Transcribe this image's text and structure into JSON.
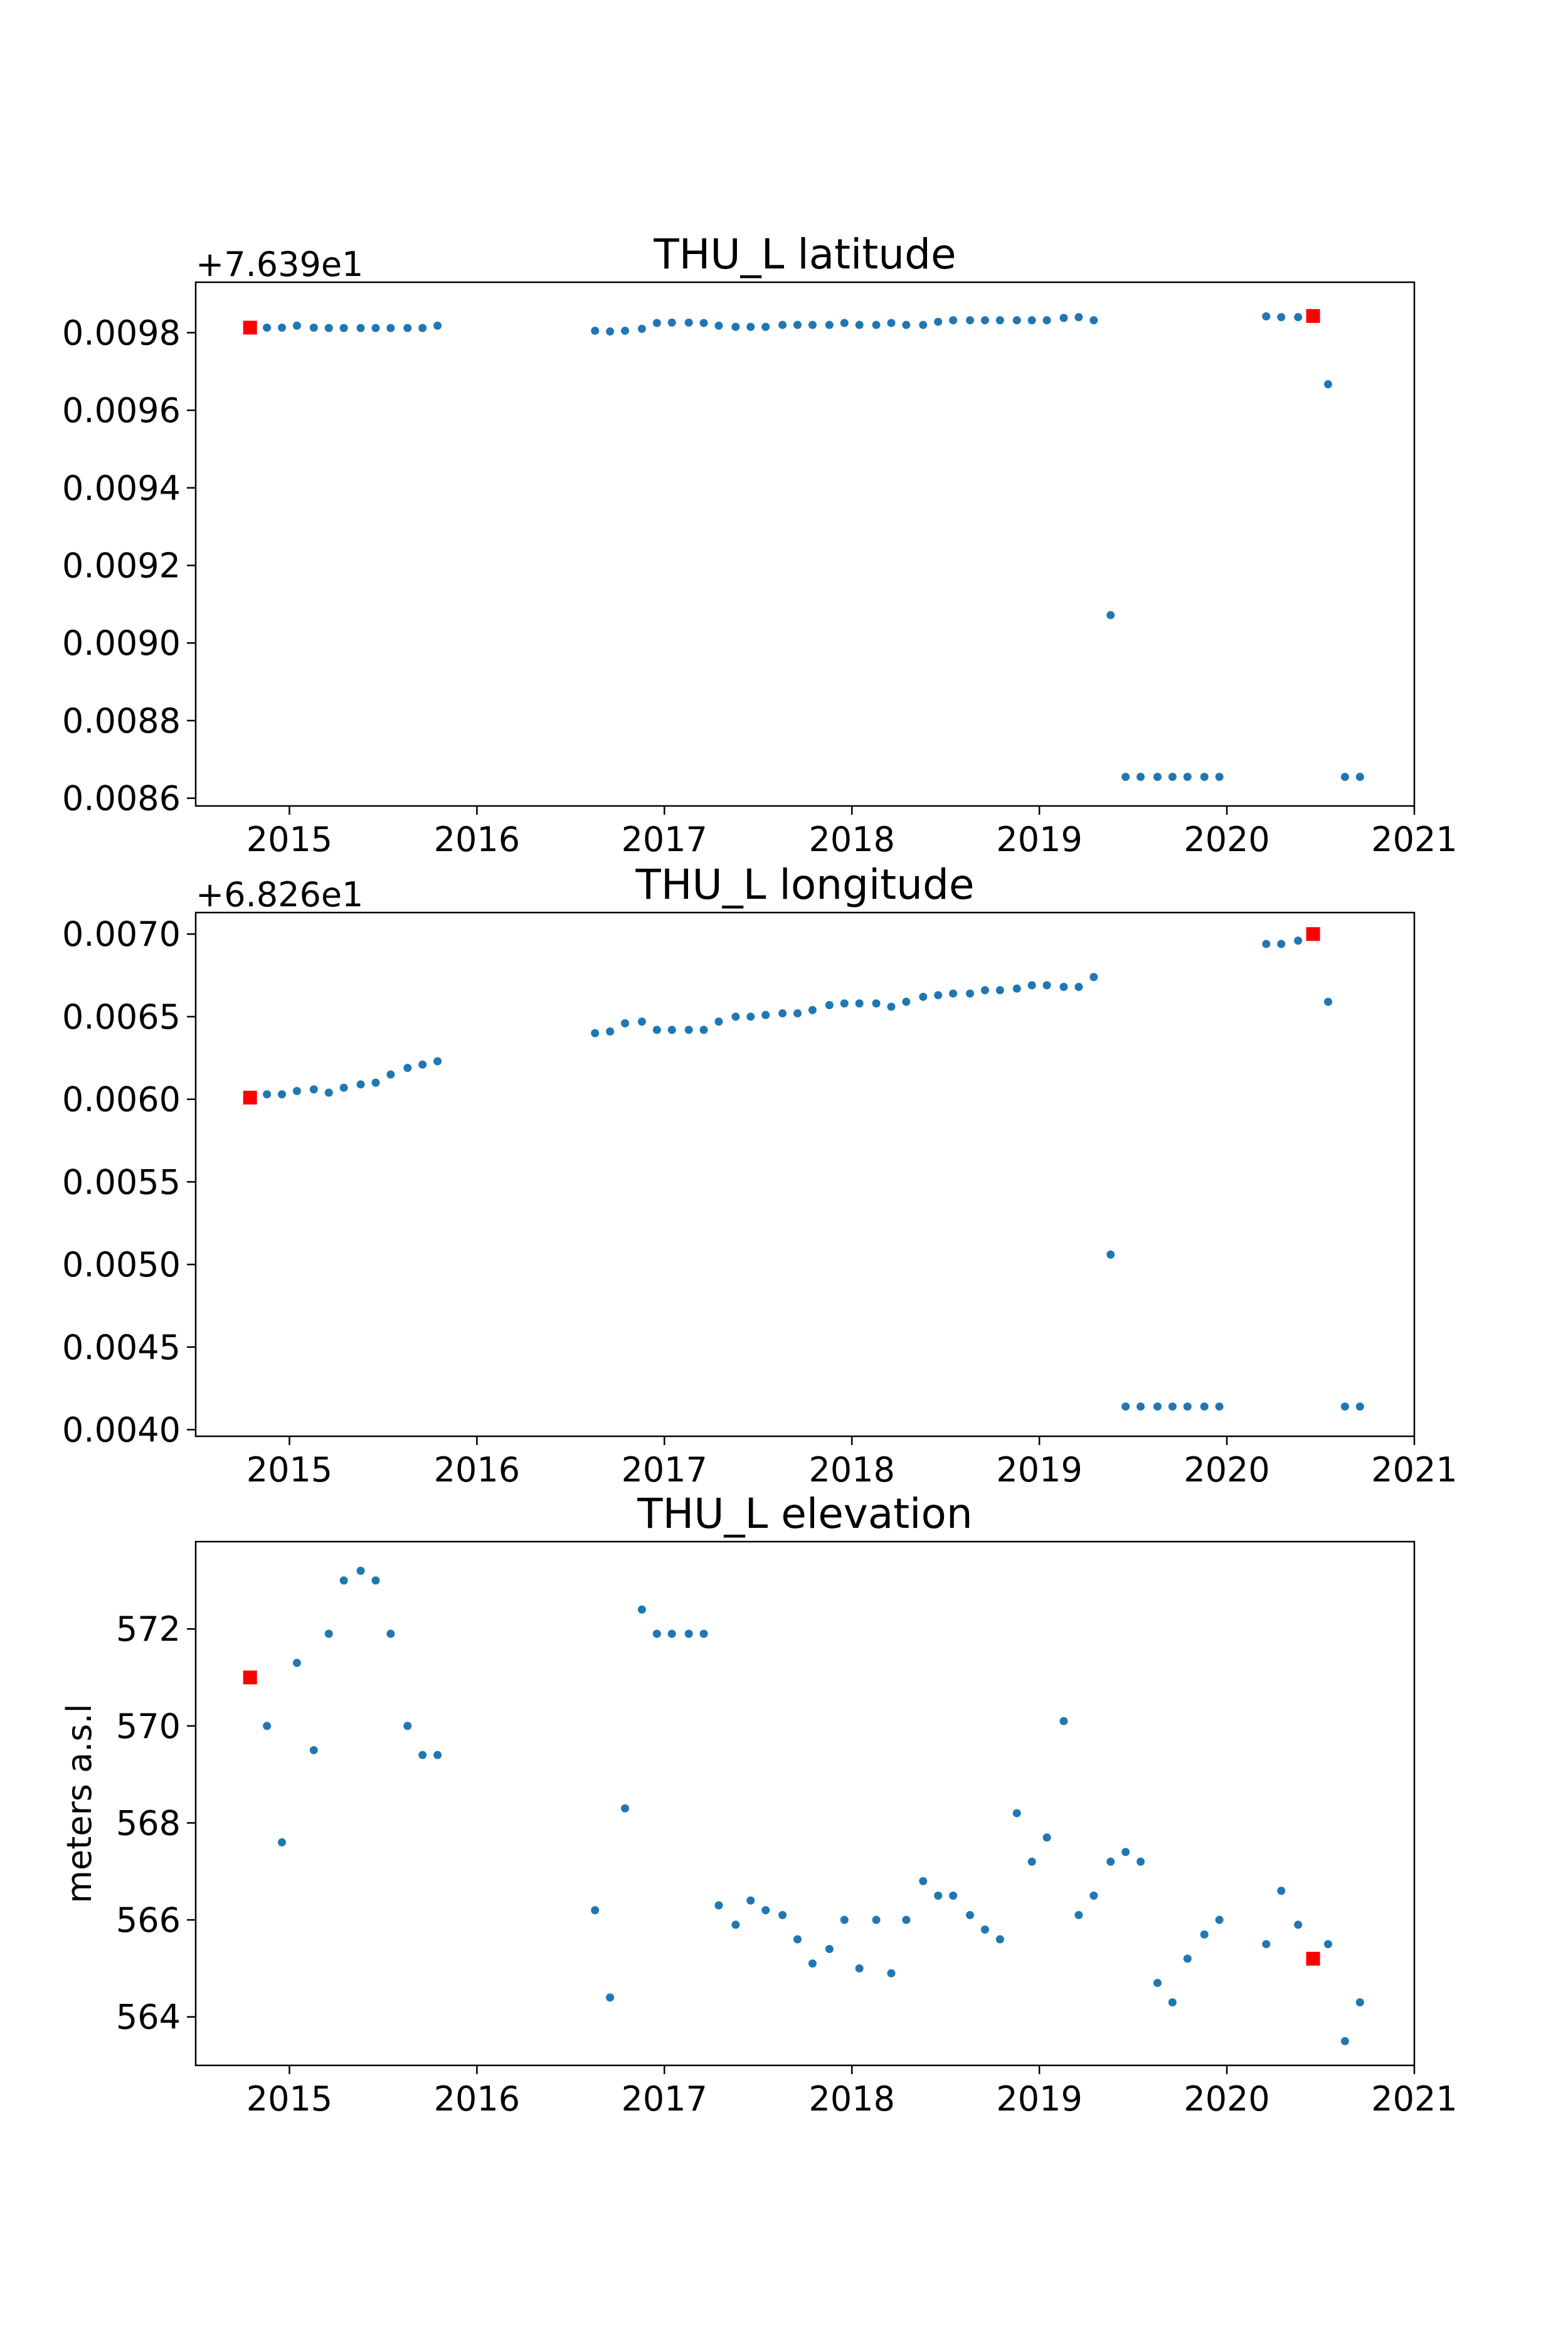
{
  "chart_data": [
    {
      "type": "scatter",
      "title": "THU_L latitude",
      "xlabel": "",
      "ylabel": "",
      "y_offset_text": "+7.639e1",
      "xlim": [
        2014.5,
        2021.0
      ],
      "ylim": [
        0.00858,
        0.00993
      ],
      "x_ticks": [
        2015,
        2016,
        2017,
        2018,
        2019,
        2020,
        2021
      ],
      "x_tick_labels": [
        "2015",
        "2016",
        "2017",
        "2018",
        "2019",
        "2020",
        "2021"
      ],
      "y_ticks": [
        0.0086,
        0.0088,
        0.009,
        0.0092,
        0.0094,
        0.0096,
        0.0098
      ],
      "y_tick_labels": [
        "0.0086",
        "0.0088",
        "0.0090",
        "0.0092",
        "0.0094",
        "0.0096",
        "0.0098"
      ],
      "series": [
        {
          "color": "#1f77b4",
          "marker": "dot",
          "points": [
            [
              2014.88,
              0.009813
            ],
            [
              2014.96,
              0.009813
            ],
            [
              2015.04,
              0.009818
            ],
            [
              2015.13,
              0.009813
            ],
            [
              2015.21,
              0.009812
            ],
            [
              2015.29,
              0.009812
            ],
            [
              2015.38,
              0.009812
            ],
            [
              2015.46,
              0.009812
            ],
            [
              2015.54,
              0.009812
            ],
            [
              2015.63,
              0.009812
            ],
            [
              2015.71,
              0.009812
            ],
            [
              2015.79,
              0.009818
            ],
            [
              2016.63,
              0.009805
            ],
            [
              2016.71,
              0.009803
            ],
            [
              2016.79,
              0.009805
            ],
            [
              2016.88,
              0.00981
            ],
            [
              2016.96,
              0.009825
            ],
            [
              2017.04,
              0.009826
            ],
            [
              2017.13,
              0.009826
            ],
            [
              2017.21,
              0.009825
            ],
            [
              2017.29,
              0.009818
            ],
            [
              2017.38,
              0.009815
            ],
            [
              2017.46,
              0.009815
            ],
            [
              2017.54,
              0.009815
            ],
            [
              2017.63,
              0.00982
            ],
            [
              2017.71,
              0.00982
            ],
            [
              2017.79,
              0.00982
            ],
            [
              2017.88,
              0.00982
            ],
            [
              2017.96,
              0.009825
            ],
            [
              2018.04,
              0.00982
            ],
            [
              2018.13,
              0.00982
            ],
            [
              2018.21,
              0.009825
            ],
            [
              2018.29,
              0.00982
            ],
            [
              2018.38,
              0.00982
            ],
            [
              2018.46,
              0.009828
            ],
            [
              2018.54,
              0.009832
            ],
            [
              2018.63,
              0.009832
            ],
            [
              2018.71,
              0.009832
            ],
            [
              2018.79,
              0.009832
            ],
            [
              2018.88,
              0.009832
            ],
            [
              2018.96,
              0.009832
            ],
            [
              2019.04,
              0.009832
            ],
            [
              2019.13,
              0.009838
            ],
            [
              2019.21,
              0.00984
            ],
            [
              2019.29,
              0.009832
            ],
            [
              2019.38,
              0.009072
            ],
            [
              2019.46,
              0.008655
            ],
            [
              2019.54,
              0.008655
            ],
            [
              2019.63,
              0.008655
            ],
            [
              2019.71,
              0.008655
            ],
            [
              2019.79,
              0.008655
            ],
            [
              2019.88,
              0.008655
            ],
            [
              2019.96,
              0.008655
            ],
            [
              2020.21,
              0.009842
            ],
            [
              2020.29,
              0.00984
            ],
            [
              2020.38,
              0.00984
            ],
            [
              2020.54,
              0.009667
            ],
            [
              2020.63,
              0.008655
            ],
            [
              2020.71,
              0.008655
            ]
          ]
        },
        {
          "color": "#ff0000",
          "marker": "square",
          "points": [
            [
              2014.79,
              0.009813
            ],
            [
              2020.46,
              0.009843
            ]
          ]
        }
      ]
    },
    {
      "type": "scatter",
      "title": "THU_L longitude",
      "xlabel": "",
      "ylabel": "",
      "y_offset_text": "+6.826e1",
      "xlim": [
        2014.5,
        2021.0
      ],
      "ylim": [
        0.00396,
        0.00713
      ],
      "x_ticks": [
        2015,
        2016,
        2017,
        2018,
        2019,
        2020,
        2021
      ],
      "x_tick_labels": [
        "2015",
        "2016",
        "2017",
        "2018",
        "2019",
        "2020",
        "2021"
      ],
      "y_ticks": [
        0.004,
        0.0045,
        0.005,
        0.0055,
        0.006,
        0.0065,
        0.007
      ],
      "y_tick_labels": [
        "0.0040",
        "0.0045",
        "0.0050",
        "0.0055",
        "0.0060",
        "0.0065",
        "0.0070"
      ],
      "series": [
        {
          "color": "#1f77b4",
          "marker": "dot",
          "points": [
            [
              2014.88,
              0.00603
            ],
            [
              2014.96,
              0.00603
            ],
            [
              2015.04,
              0.00605
            ],
            [
              2015.13,
              0.00606
            ],
            [
              2015.21,
              0.00604
            ],
            [
              2015.29,
              0.00607
            ],
            [
              2015.38,
              0.00609
            ],
            [
              2015.46,
              0.0061
            ],
            [
              2015.54,
              0.00615
            ],
            [
              2015.63,
              0.00619
            ],
            [
              2015.71,
              0.00621
            ],
            [
              2015.79,
              0.00623
            ],
            [
              2016.63,
              0.0064
            ],
            [
              2016.71,
              0.00641
            ],
            [
              2016.79,
              0.00646
            ],
            [
              2016.88,
              0.00647
            ],
            [
              2016.96,
              0.00642
            ],
            [
              2017.04,
              0.00642
            ],
            [
              2017.13,
              0.00642
            ],
            [
              2017.21,
              0.00642
            ],
            [
              2017.29,
              0.00647
            ],
            [
              2017.38,
              0.0065
            ],
            [
              2017.46,
              0.0065
            ],
            [
              2017.54,
              0.00651
            ],
            [
              2017.63,
              0.00652
            ],
            [
              2017.71,
              0.00652
            ],
            [
              2017.79,
              0.00654
            ],
            [
              2017.88,
              0.00657
            ],
            [
              2017.96,
              0.00658
            ],
            [
              2018.04,
              0.00658
            ],
            [
              2018.13,
              0.00658
            ],
            [
              2018.21,
              0.00656
            ],
            [
              2018.29,
              0.00659
            ],
            [
              2018.38,
              0.00662
            ],
            [
              2018.46,
              0.00663
            ],
            [
              2018.54,
              0.00664
            ],
            [
              2018.63,
              0.00664
            ],
            [
              2018.71,
              0.00666
            ],
            [
              2018.79,
              0.00666
            ],
            [
              2018.88,
              0.00667
            ],
            [
              2018.96,
              0.00669
            ],
            [
              2019.04,
              0.00669
            ],
            [
              2019.13,
              0.00668
            ],
            [
              2019.21,
              0.00668
            ],
            [
              2019.29,
              0.00674
            ],
            [
              2019.38,
              0.00506
            ],
            [
              2019.46,
              0.00414
            ],
            [
              2019.54,
              0.00414
            ],
            [
              2019.63,
              0.00414
            ],
            [
              2019.71,
              0.00414
            ],
            [
              2019.79,
              0.00414
            ],
            [
              2019.88,
              0.00414
            ],
            [
              2019.96,
              0.00414
            ],
            [
              2020.21,
              0.00694
            ],
            [
              2020.29,
              0.00694
            ],
            [
              2020.38,
              0.00696
            ],
            [
              2020.54,
              0.00659
            ],
            [
              2020.63,
              0.00414
            ],
            [
              2020.71,
              0.00414
            ]
          ]
        },
        {
          "color": "#ff0000",
          "marker": "square",
          "points": [
            [
              2014.79,
              0.00601
            ],
            [
              2020.46,
              0.007
            ]
          ]
        }
      ]
    },
    {
      "type": "scatter",
      "title": "THU_L elevation",
      "xlabel": "",
      "ylabel": "meters a.s.l",
      "y_offset_text": "",
      "xlim": [
        2014.5,
        2021.0
      ],
      "ylim": [
        563.0,
        573.8
      ],
      "x_ticks": [
        2015,
        2016,
        2017,
        2018,
        2019,
        2020,
        2021
      ],
      "x_tick_labels": [
        "2015",
        "2016",
        "2017",
        "2018",
        "2019",
        "2020",
        "2021"
      ],
      "y_ticks": [
        564,
        566,
        568,
        570,
        572
      ],
      "y_tick_labels": [
        "564",
        "566",
        "568",
        "570",
        "572"
      ],
      "series": [
        {
          "color": "#1f77b4",
          "marker": "dot",
          "points": [
            [
              2014.88,
              570.0
            ],
            [
              2014.96,
              567.6
            ],
            [
              2015.04,
              571.3
            ],
            [
              2015.13,
              569.5
            ],
            [
              2015.21,
              571.9
            ],
            [
              2015.29,
              573.0
            ],
            [
              2015.38,
              573.2
            ],
            [
              2015.46,
              573.0
            ],
            [
              2015.54,
              571.9
            ],
            [
              2015.63,
              570.0
            ],
            [
              2015.71,
              569.4
            ],
            [
              2015.79,
              569.4
            ],
            [
              2016.63,
              566.2
            ],
            [
              2016.71,
              564.4
            ],
            [
              2016.79,
              568.3
            ],
            [
              2016.88,
              572.4
            ],
            [
              2016.96,
              571.9
            ],
            [
              2017.04,
              571.9
            ],
            [
              2017.13,
              571.9
            ],
            [
              2017.21,
              571.9
            ],
            [
              2017.29,
              566.3
            ],
            [
              2017.38,
              565.9
            ],
            [
              2017.46,
              566.4
            ],
            [
              2017.54,
              566.2
            ],
            [
              2017.63,
              566.1
            ],
            [
              2017.71,
              565.6
            ],
            [
              2017.79,
              565.1
            ],
            [
              2017.88,
              565.4
            ],
            [
              2017.96,
              566.0
            ],
            [
              2018.04,
              565.0
            ],
            [
              2018.13,
              566.0
            ],
            [
              2018.21,
              564.9
            ],
            [
              2018.29,
              566.0
            ],
            [
              2018.38,
              566.8
            ],
            [
              2018.46,
              566.5
            ],
            [
              2018.54,
              566.5
            ],
            [
              2018.63,
              566.1
            ],
            [
              2018.71,
              565.8
            ],
            [
              2018.79,
              565.6
            ],
            [
              2018.88,
              568.2
            ],
            [
              2018.96,
              567.2
            ],
            [
              2019.04,
              567.7
            ],
            [
              2019.13,
              570.1
            ],
            [
              2019.21,
              566.1
            ],
            [
              2019.29,
              566.5
            ],
            [
              2019.38,
              567.2
            ],
            [
              2019.46,
              567.4
            ],
            [
              2019.54,
              567.2
            ],
            [
              2019.63,
              564.7
            ],
            [
              2019.71,
              564.3
            ],
            [
              2019.79,
              565.2
            ],
            [
              2019.88,
              565.7
            ],
            [
              2019.96,
              566.0
            ],
            [
              2020.21,
              565.5
            ],
            [
              2020.29,
              566.6
            ],
            [
              2020.38,
              565.9
            ],
            [
              2020.54,
              565.5
            ],
            [
              2020.63,
              563.5
            ],
            [
              2020.71,
              564.3
            ]
          ]
        },
        {
          "color": "#ff0000",
          "marker": "square",
          "points": [
            [
              2014.79,
              571.0
            ],
            [
              2020.46,
              565.2
            ]
          ]
        }
      ]
    }
  ]
}
